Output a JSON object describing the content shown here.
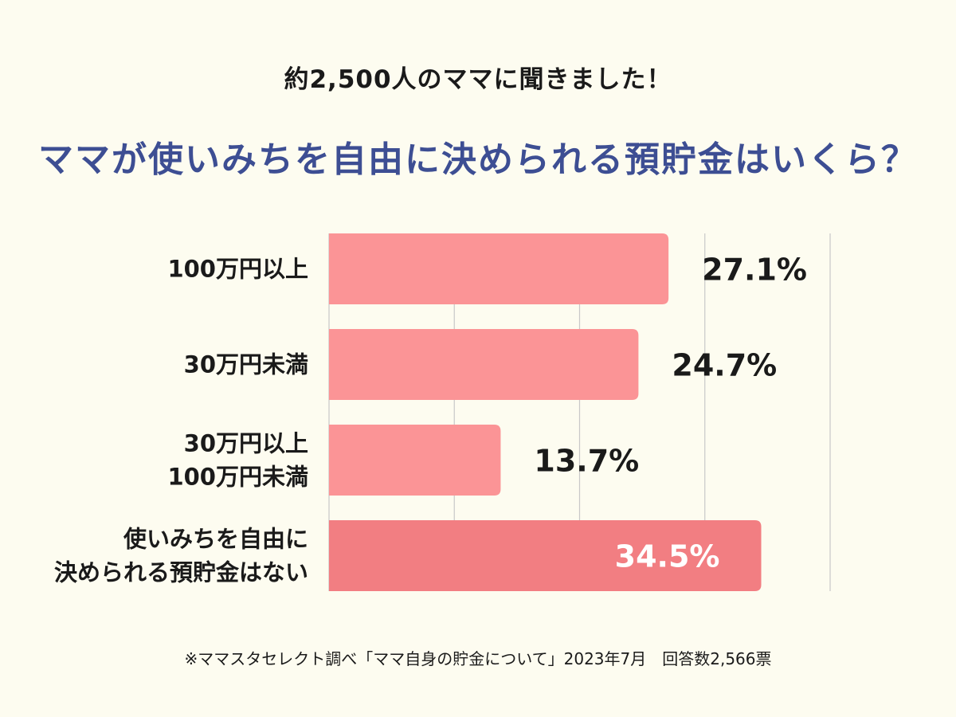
{
  "header": {
    "subtitle": "約2,500人のママに聞きました！",
    "title": "ママが使いみちを自由に決められる預貯金はいくら？"
  },
  "colors": {
    "bar": "#fb9496",
    "bar_highlight": "#f27e82",
    "grid": "#c8c8c8",
    "label_dark": "#1a1a1a",
    "label_light": "#ffffff",
    "title": "#3d4e93"
  },
  "chart_data": {
    "type": "bar",
    "orientation": "horizontal",
    "categories": [
      [
        "100万円以上"
      ],
      [
        "30万円未満"
      ],
      [
        "30万円以上",
        "100万円未満"
      ],
      [
        "使いみちを自由に",
        "決められる預貯金はない"
      ]
    ],
    "values": [
      27.1,
      24.7,
      13.7,
      34.5
    ],
    "value_labels": [
      "27.1%",
      "24.7%",
      "13.7%",
      "34.5%"
    ],
    "highlight_index": 3,
    "xlim": [
      0,
      40
    ],
    "grid": true,
    "gridlines": [
      10,
      20,
      30,
      40
    ],
    "legend": "none"
  },
  "footnote": "※ママスタセレクト調べ「ママ自身の貯金について」2023年7月　回答数2,566票"
}
